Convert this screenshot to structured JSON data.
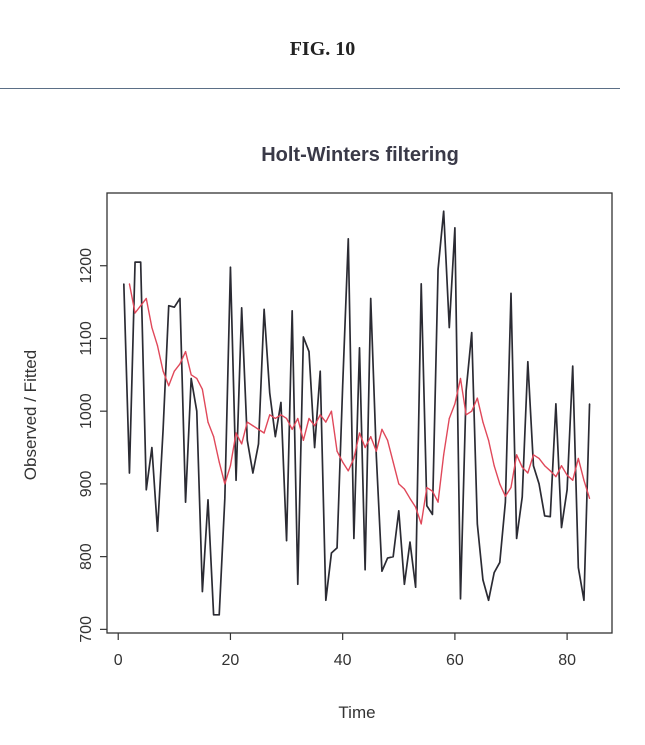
{
  "figure_label": "FIG. 10",
  "chart_data": {
    "type": "line",
    "title": "Holt-Winters filtering",
    "xlabel": "Time",
    "ylabel": "Observed / Fitted",
    "xlim": [
      -2,
      88
    ],
    "ylim": [
      695,
      1300
    ],
    "x_ticks": [
      0,
      20,
      40,
      60,
      80
    ],
    "y_ticks": [
      700,
      800,
      900,
      1000,
      1100,
      1200
    ],
    "colors": {
      "observed": "#2b2b33",
      "fitted": "#e0485a"
    },
    "series": [
      {
        "name": "Observed",
        "x": [
          1,
          2,
          3,
          4,
          5,
          6,
          7,
          8,
          9,
          10,
          11,
          12,
          13,
          14,
          15,
          16,
          17,
          18,
          19,
          20,
          21,
          22,
          23,
          24,
          25,
          26,
          27,
          28,
          29,
          30,
          31,
          32,
          33,
          34,
          35,
          36,
          37,
          38,
          39,
          40,
          41,
          42,
          43,
          44,
          45,
          46,
          47,
          48,
          49,
          50,
          51,
          52,
          53,
          54,
          55,
          56,
          57,
          58,
          59,
          60,
          61,
          62,
          63,
          64,
          65,
          66,
          67,
          68,
          69,
          70,
          71,
          72,
          73,
          74,
          75,
          76,
          77,
          78,
          79,
          80,
          81,
          82,
          83,
          84
        ],
        "values": [
          1175,
          915,
          1205,
          1205,
          892,
          950,
          835,
          975,
          1145,
          1143,
          1155,
          875,
          1045,
          1000,
          752,
          878,
          720,
          720,
          880,
          1198,
          905,
          1142,
          960,
          915,
          955,
          1140,
          1025,
          965,
          1012,
          822,
          1138,
          762,
          1102,
          1082,
          950,
          1055,
          740,
          805,
          812,
          1035,
          1237,
          825,
          1087,
          782,
          1155,
          938,
          780,
          798,
          800,
          863,
          762,
          820,
          758,
          1175,
          870,
          858,
          1195,
          1275,
          1115,
          1252,
          742,
          1028,
          1108,
          845,
          768,
          740,
          778,
          792,
          875,
          1162,
          825,
          882,
          1068,
          925,
          900,
          856,
          855,
          1010,
          840,
          892,
          1062,
          785,
          740,
          1010
        ]
      },
      {
        "name": "Fitted",
        "x": [
          2,
          3,
          4,
          5,
          6,
          7,
          8,
          9,
          10,
          11,
          12,
          13,
          14,
          15,
          16,
          17,
          18,
          19,
          20,
          21,
          22,
          23,
          24,
          25,
          26,
          27,
          28,
          29,
          30,
          31,
          32,
          33,
          34,
          35,
          36,
          37,
          38,
          39,
          40,
          41,
          42,
          43,
          44,
          45,
          46,
          47,
          48,
          49,
          50,
          51,
          52,
          53,
          54,
          55,
          56,
          57,
          58,
          59,
          60,
          61,
          62,
          63,
          64,
          65,
          66,
          67,
          68,
          69,
          70,
          71,
          72,
          73,
          74,
          75,
          76,
          77,
          78,
          79,
          80,
          81,
          82,
          83,
          84
        ],
        "values": [
          1175,
          1135,
          1145,
          1155,
          1115,
          1090,
          1055,
          1035,
          1055,
          1065,
          1082,
          1050,
          1045,
          1030,
          985,
          965,
          930,
          900,
          925,
          970,
          955,
          985,
          980,
          975,
          970,
          995,
          990,
          995,
          990,
          975,
          990,
          960,
          990,
          980,
          995,
          985,
          1000,
          945,
          930,
          918,
          935,
          970,
          950,
          965,
          945,
          975,
          960,
          930,
          900,
          893,
          880,
          868,
          845,
          895,
          890,
          875,
          940,
          990,
          1010,
          1045,
          995,
          1000,
          1018,
          985,
          960,
          925,
          900,
          883,
          895,
          940,
          923,
          915,
          940,
          935,
          925,
          918,
          910,
          925,
          912,
          905,
          935,
          905,
          880
        ]
      }
    ]
  }
}
